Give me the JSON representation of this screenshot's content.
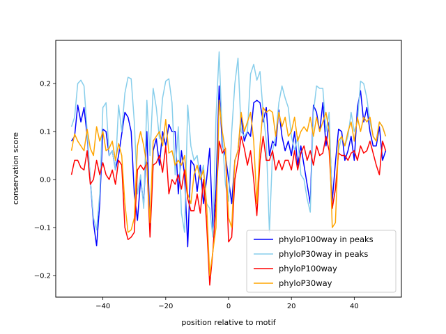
{
  "chart_data": {
    "type": "line",
    "title": "",
    "xlabel": "position relative to motif",
    "ylabel": "conservation score",
    "xlim": [
      -55.0,
      55.0
    ],
    "ylim": [
      -0.245,
      0.29
    ],
    "xticks": [
      -40,
      -20,
      0,
      20,
      40
    ],
    "yticks": [
      -0.2,
      -0.1,
      0.0,
      0.1,
      0.2
    ],
    "xtick_labels": [
      "−40",
      "−20",
      "0",
      "20",
      "40"
    ],
    "ytick_labels": [
      "−0.2",
      "−0.1",
      "0.0",
      "0.1",
      "0.2"
    ],
    "legend_position": "lower-right",
    "x": [
      -50,
      -49,
      -48,
      -47,
      -46,
      -45,
      -44,
      -43,
      -42,
      -41,
      -40,
      -39,
      -38,
      -37,
      -36,
      -35,
      -34,
      -33,
      -32,
      -31,
      -30,
      -29,
      -28,
      -27,
      -26,
      -25,
      -24,
      -23,
      -22,
      -21,
      -20,
      -19,
      -18,
      -17,
      -16,
      -15,
      -14,
      -13,
      -12,
      -11,
      -10,
      -9,
      -8,
      -7,
      -6,
      -5,
      -4,
      -3,
      -2,
      -1,
      0,
      1,
      2,
      3,
      4,
      5,
      6,
      7,
      8,
      9,
      10,
      11,
      12,
      13,
      14,
      15,
      16,
      17,
      18,
      19,
      20,
      21,
      22,
      23,
      24,
      25,
      26,
      27,
      28,
      29,
      30,
      31,
      32,
      33,
      34,
      35,
      36,
      37,
      38,
      39,
      40,
      41,
      42,
      43,
      44,
      45,
      46,
      47,
      48,
      49,
      50
    ],
    "series": [
      {
        "name": "phyloP100way in peaks",
        "color": "#0000ff",
        "values": [
          0.08,
          0.09,
          0.155,
          0.12,
          0.15,
          0.09,
          0.0,
          -0.09,
          -0.138,
          -0.05,
          0.105,
          0.1,
          0.05,
          0.06,
          0.02,
          0.05,
          0.095,
          0.14,
          0.13,
          0.1,
          -0.03,
          -0.085,
          0.0,
          -0.05,
          0.1,
          -0.095,
          0.06,
          0.085,
          0.03,
          0.1,
          0.07,
          0.115,
          0.1,
          0.1,
          -0.03,
          0.06,
          0.01,
          -0.14,
          0.04,
          0.03,
          -0.025,
          0.03,
          -0.05,
          0.0,
          0.065,
          -0.11,
          -0.02,
          0.195,
          0.07,
          0.05,
          0.0,
          -0.05,
          0.04,
          0.06,
          0.13,
          0.08,
          0.1,
          0.09,
          0.16,
          0.165,
          0.16,
          0.12,
          0.15,
          0.05,
          0.08,
          0.07,
          0.145,
          0.09,
          0.06,
          0.08,
          0.05,
          0.1,
          0.03,
          0.07,
          0.03,
          -0.01,
          -0.05,
          0.155,
          0.14,
          0.1,
          0.16,
          0.07,
          0.12,
          -0.045,
          0.035,
          0.105,
          0.1,
          0.04,
          0.06,
          0.09,
          0.04,
          0.15,
          0.185,
          0.12,
          0.15,
          0.1,
          0.07,
          0.07,
          0.11,
          0.04,
          0.06
        ]
      },
      {
        "name": "phyloP30way in peaks",
        "color": "#87ceeb",
        "values": [
          0.11,
          0.13,
          0.2,
          0.207,
          0.195,
          0.1,
          0.0,
          -0.08,
          -0.105,
          -0.03,
          0.15,
          0.16,
          0.05,
          0.06,
          0.02,
          0.155,
          0.1,
          0.18,
          0.213,
          0.21,
          0.12,
          -0.03,
          0.01,
          -0.06,
          0.165,
          0.05,
          0.19,
          0.15,
          0.085,
          0.17,
          0.205,
          0.21,
          0.16,
          0.01,
          0.11,
          -0.07,
          -0.11,
          0.155,
          0.07,
          0.04,
          0.05,
          0.0,
          0.03,
          -0.05,
          -0.06,
          -0.12,
          0.13,
          0.266,
          0.09,
          -0.01,
          -0.045,
          0.1,
          0.2,
          0.253,
          0.1,
          0.09,
          0.1,
          0.22,
          0.24,
          0.207,
          0.225,
          0.14,
          0.08,
          -0.11,
          0.06,
          0.09,
          0.16,
          0.195,
          0.17,
          0.15,
          0.09,
          0.06,
          0.09,
          0.01,
          0.0,
          -0.04,
          -0.068,
          0.14,
          0.195,
          0.19,
          0.19,
          0.1,
          0.14,
          -0.06,
          -0.02,
          0.06,
          0.09,
          0.07,
          0.09,
          0.14,
          0.1,
          0.12,
          0.205,
          0.2,
          0.17,
          0.12,
          0.09,
          0.08,
          0.12,
          0.11,
          0.09
        ]
      },
      {
        "name": "phyloP100way",
        "color": "#ff0000",
        "values": [
          0.01,
          0.04,
          0.04,
          0.025,
          0.02,
          0.06,
          -0.01,
          0.0,
          0.04,
          0.01,
          0.035,
          0.01,
          0.0,
          0.02,
          -0.01,
          0.04,
          0.03,
          -0.1,
          -0.125,
          -0.12,
          -0.11,
          0.02,
          0.03,
          0.02,
          0.035,
          -0.12,
          0.03,
          0.035,
          0.05,
          0.015,
          0.07,
          -0.03,
          0.0,
          -0.01,
          0.01,
          -0.02,
          0.02,
          -0.04,
          -0.065,
          -0.065,
          -0.03,
          -0.07,
          0.0,
          -0.09,
          -0.22,
          -0.15,
          -0.05,
          0.08,
          0.055,
          0.065,
          -0.13,
          -0.12,
          0.0,
          0.04,
          0.09,
          0.065,
          0.03,
          0.06,
          0.0,
          -0.075,
          0.04,
          0.09,
          0.04,
          0.04,
          0.06,
          0.02,
          0.04,
          0.02,
          0.04,
          0.04,
          0.02,
          0.06,
          0.02,
          0.055,
          0.07,
          0.04,
          0.06,
          0.03,
          0.07,
          0.05,
          0.055,
          0.09,
          0.06,
          -0.06,
          -0.02,
          0.055,
          0.05,
          0.05,
          0.04,
          0.055,
          0.06,
          0.04,
          0.07,
          0.055,
          0.06,
          0.08,
          0.055,
          0.03,
          0.01,
          0.08,
          0.06
        ]
      },
      {
        "name": "phyloP30way",
        "color": "#ffa500",
        "values": [
          0.06,
          0.095,
          0.08,
          0.07,
          0.06,
          0.105,
          0.065,
          0.05,
          0.11,
          0.08,
          0.1,
          0.06,
          0.065,
          0.08,
          0.04,
          0.075,
          0.05,
          -0.05,
          -0.11,
          -0.105,
          -0.08,
          0.07,
          0.1,
          0.07,
          0.03,
          -0.09,
          0.08,
          0.09,
          0.1,
          0.07,
          0.125,
          0.055,
          0.06,
          0.03,
          0.04,
          0.03,
          0.05,
          -0.03,
          -0.05,
          0.01,
          0.03,
          0.0,
          0.02,
          -0.05,
          -0.2,
          -0.15,
          -0.1,
          0.165,
          0.1,
          0.06,
          -0.08,
          -0.1,
          0.04,
          0.06,
          0.14,
          0.1,
          0.12,
          0.14,
          0.08,
          -0.05,
          0.07,
          0.15,
          0.14,
          0.145,
          0.14,
          0.09,
          0.14,
          0.11,
          0.13,
          0.09,
          0.1,
          0.13,
          0.08,
          0.1,
          0.11,
          0.1,
          0.13,
          0.09,
          0.13,
          0.1,
          0.12,
          0.14,
          0.1,
          -0.1,
          -0.09,
          0.08,
          0.09,
          0.07,
          0.1,
          0.12,
          0.08,
          0.13,
          0.1,
          0.13,
          0.12,
          0.13,
          0.09,
          0.08,
          0.12,
          0.11,
          0.09
        ]
      }
    ]
  }
}
